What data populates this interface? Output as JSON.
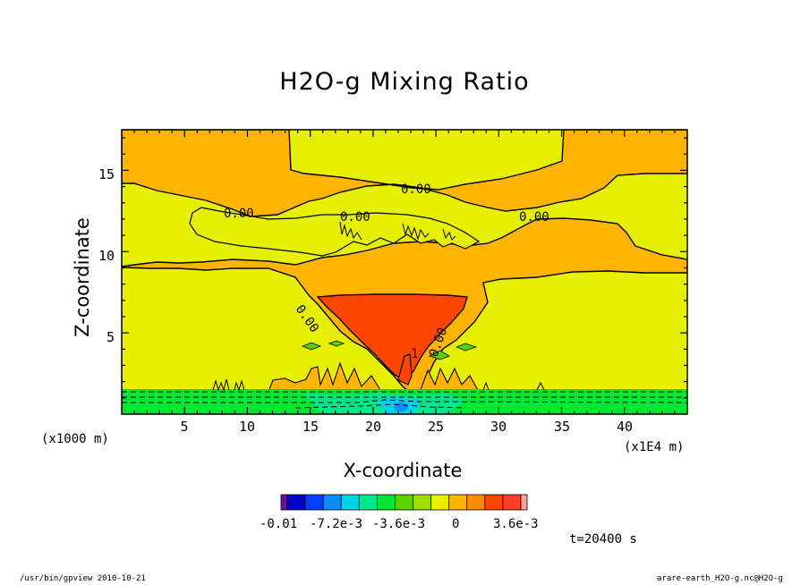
{
  "chart_data": {
    "type": "contour",
    "title": "H2O-g Mixing Ratio",
    "xlabel": "X-coordinate",
    "ylabel": "Z-coordinate",
    "x_unit_label": "(x1000 m)",
    "x_scale_label": "(x1E4 m)",
    "xlim": [
      0,
      45
    ],
    "ylim": [
      0,
      17.5
    ],
    "x_ticks": [
      "5",
      "10",
      "15",
      "20",
      "25",
      "30",
      "35",
      "40"
    ],
    "y_ticks": [
      "5",
      "10",
      "15"
    ],
    "contour_labels": [
      "0.00",
      "0.00",
      "0.00",
      "0.00",
      "0.00",
      "0.00",
      "1"
    ],
    "colorbar": {
      "tick_labels": [
        "-0.01",
        "-7.2e-3",
        "-3.6e-3",
        "0",
        "3.6e-3"
      ],
      "colors": [
        "#6a0dad",
        "#0000c8",
        "#0040ff",
        "#0a8cff",
        "#00d2e6",
        "#00e68c",
        "#00e632",
        "#5ad200",
        "#a0dc00",
        "#e6f000",
        "#ffb400",
        "#ff8c00",
        "#ff4600",
        "#ff3c28",
        "#ffa0a0"
      ]
    },
    "time_label": "t=20400 s"
  },
  "footer": {
    "left": "/usr/bin/gpview   2010-10-21",
    "right": "arare-earth_H2O-g.nc@H2O-g"
  }
}
